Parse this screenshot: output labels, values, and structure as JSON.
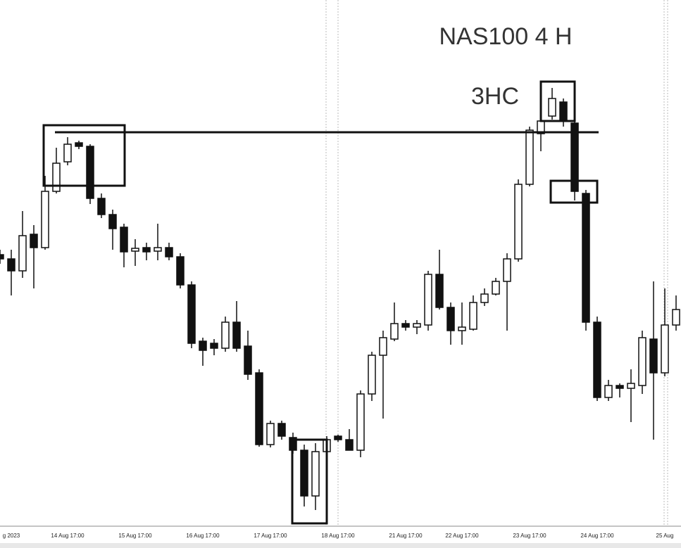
{
  "chart_data": {
    "type": "candlestick",
    "title": "NAS100 4 H",
    "annotation": "3HC",
    "categories": [
      null,
      "g 2023",
      null,
      null,
      null,
      null,
      "14 Aug 17:00",
      null,
      null,
      null,
      null,
      null,
      "15 Aug 17:00",
      null,
      null,
      null,
      null,
      null,
      "16 Aug 17:00",
      null,
      null,
      null,
      null,
      null,
      "17 Aug 17:00",
      null,
      null,
      null,
      null,
      null,
      "18 Aug 17:00",
      null,
      null,
      null,
      null,
      null,
      "21 Aug 17:00",
      null,
      null,
      null,
      null,
      "22 Aug 17:00",
      null,
      null,
      null,
      null,
      null,
      "23 Aug 17:00",
      null,
      null,
      null,
      null,
      null,
      "24 Aug 17:00",
      null,
      null,
      null,
      null,
      null,
      "25 Aug",
      null
    ],
    "open": [
      417,
      411,
      394,
      446,
      427,
      507,
      549,
      576,
      571,
      497,
      474,
      456,
      422,
      427,
      422,
      427,
      414,
      374,
      294,
      291,
      284,
      321,
      287,
      249,
      147,
      177,
      157,
      139,
      74,
      137,
      159,
      154,
      139,
      219,
      274,
      297,
      319,
      314,
      317,
      389,
      342,
      309,
      311,
      349,
      361,
      379,
      411,
      517,
      589,
      614,
      634,
      604,
      504,
      321,
      214,
      231,
      227,
      231,
      297,
      249,
      317
    ],
    "high": [
      424,
      424,
      479,
      459,
      529,
      569,
      584,
      579,
      574,
      504,
      481,
      461,
      439,
      434,
      461,
      434,
      419,
      379,
      299,
      297,
      329,
      351,
      309,
      254,
      181,
      181,
      164,
      147,
      149,
      159,
      161,
      169,
      224,
      279,
      309,
      349,
      324,
      324,
      394,
      424,
      349,
      349,
      359,
      369,
      384,
      419,
      524,
      599,
      629,
      654,
      639,
      614,
      509,
      329,
      239,
      234,
      254,
      309,
      379,
      369,
      359
    ],
    "low": [
      404,
      359,
      384,
      369,
      424,
      504,
      544,
      567,
      489,
      469,
      424,
      399,
      401,
      409,
      409,
      409,
      369,
      284,
      259,
      274,
      279,
      279,
      239,
      144,
      143,
      154,
      134,
      59,
      54,
      129,
      151,
      139,
      129,
      209,
      184,
      294,
      309,
      304,
      309,
      339,
      289,
      289,
      309,
      344,
      359,
      309,
      407,
      514,
      564,
      609,
      599,
      494,
      309,
      209,
      209,
      214,
      179,
      219,
      154,
      244,
      309
    ],
    "close": [
      411,
      394,
      444,
      427,
      507,
      547,
      574,
      571,
      497,
      474,
      454,
      421,
      426,
      421,
      427,
      414,
      374,
      291,
      281,
      284,
      321,
      284,
      247,
      147,
      177,
      159,
      139,
      74,
      137,
      154,
      154,
      139,
      219,
      274,
      299,
      319,
      314,
      319,
      389,
      342,
      309,
      314,
      349,
      361,
      379,
      411,
      517,
      594,
      607,
      639,
      609,
      507,
      321,
      214,
      231,
      227,
      234,
      299,
      249,
      317,
      339
    ],
    "ylim": [
      0,
      779
    ]
  }
}
